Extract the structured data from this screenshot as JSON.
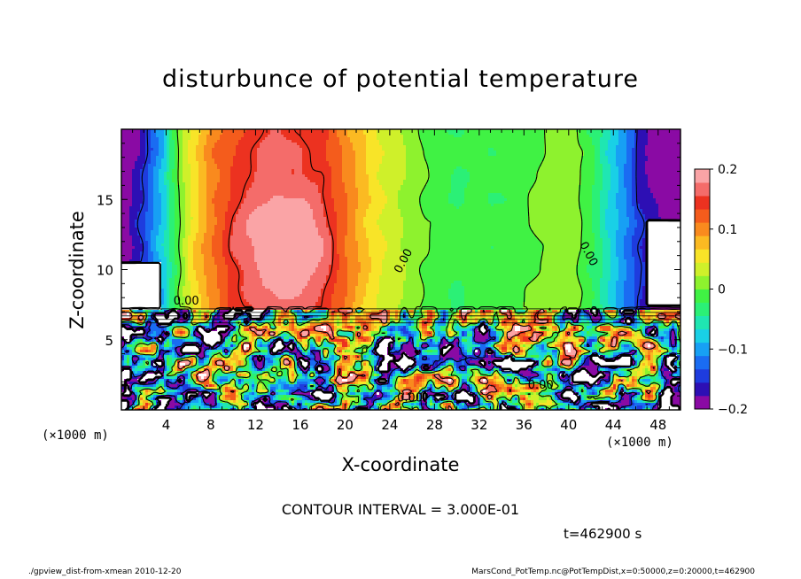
{
  "header": {
    "title": "disturbunce of potential temperature"
  },
  "annotations": {
    "contour_interval": "CONTOUR INTERVAL = 3.000E-01",
    "time": "t=462900 s",
    "footer_left": "./gpview_dist-from-xmean  2010-12-20",
    "footer_right": "MarsCond_PotTemp.nc@PotTempDist,x=0:50000,z=0:20000,t=462900",
    "x_unit_left": "(×1000 m)",
    "x_unit_right": "(×1000 m)",
    "contour_label": "0.00"
  },
  "colors": {
    "frame": "#000000",
    "palette": [
      "#8a0aa4",
      "#2d0fb4",
      "#1e3cde",
      "#1a6cf2",
      "#17a0f4",
      "#19d0e6",
      "#1fe6b2",
      "#2bf076",
      "#40f244",
      "#8ef22e",
      "#cff02a",
      "#f8e428",
      "#fbba22",
      "#f98a1e",
      "#f45c1c",
      "#ec3220",
      "#f46c6a",
      "#faa4a6"
    ]
  },
  "chart_data": {
    "type": "heatmap",
    "title": "disturbunce of potential temperature",
    "xlabel": "X-coordinate",
    "ylabel": "Z-coordinate",
    "xlim": [
      0,
      50
    ],
    "ylim": [
      0,
      20
    ],
    "x_ticks": [
      4,
      8,
      12,
      16,
      20,
      24,
      28,
      32,
      36,
      40,
      44,
      48
    ],
    "y_ticks": [
      5,
      10,
      15
    ],
    "colorbar": {
      "range": [
        -0.2,
        0.2
      ],
      "ticks": [
        0.2,
        0.1,
        0,
        -0.1,
        -0.2
      ],
      "tick_labels": [
        "0.2",
        "0.1",
        "0",
        "−0.1",
        "−0.2"
      ],
      "levels": 18
    },
    "upper_layer": {
      "z_range": [
        7.2,
        20
      ],
      "profile_x": [
        0,
        2,
        4,
        6,
        8,
        10,
        12,
        14,
        16,
        18,
        20,
        22,
        24,
        26,
        28,
        30,
        32,
        34,
        36,
        38,
        40,
        42,
        44,
        46,
        48,
        50
      ],
      "profile_value": [
        -0.2,
        -0.14,
        -0.06,
        0.04,
        0.1,
        0.13,
        0.15,
        0.16,
        0.155,
        0.14,
        0.1,
        0.06,
        0.03,
        0.01,
        -0.01,
        -0.02,
        -0.02,
        -0.015,
        -0.005,
        0.01,
        0.015,
        -0.02,
        -0.08,
        -0.14,
        -0.18,
        -0.2
      ],
      "peak": {
        "x": 14.5,
        "z": 12,
        "value": 0.19
      }
    },
    "lower_layer": {
      "z_range": [
        0,
        7.2
      ],
      "description_free": true
    },
    "contour_labels": [
      {
        "text": "0.00",
        "x": 25.5,
        "z": 10.5,
        "angle": -62
      },
      {
        "text": "0.00",
        "x": 41.5,
        "z": 11.0,
        "angle": 62
      },
      {
        "text": "0.00",
        "x": 37.5,
        "z": 1.5,
        "angle": 0
      },
      {
        "text": "0.00",
        "x": 25.8,
        "z": 0.6,
        "angle": 0
      },
      {
        "text": "0.00",
        "x": 5.8,
        "z": 7.5,
        "angle": 0
      }
    ]
  }
}
